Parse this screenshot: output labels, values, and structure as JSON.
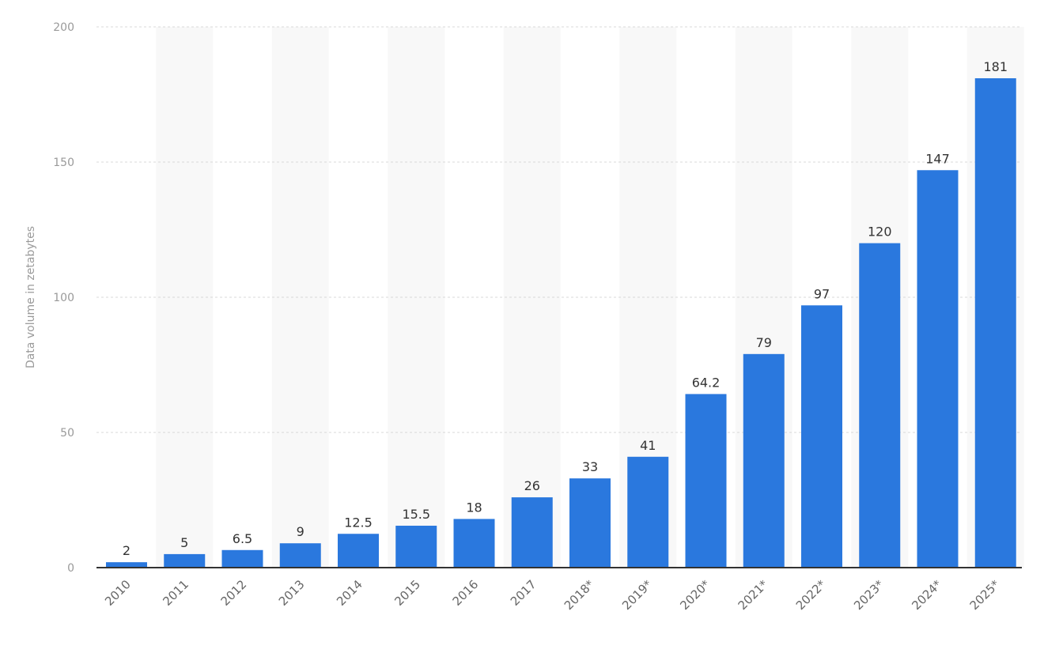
{
  "chart_data": {
    "type": "bar",
    "categories": [
      "2010",
      "2011",
      "2012",
      "2013",
      "2014",
      "2015",
      "2016",
      "2017",
      "2018*",
      "2019*",
      "2020*",
      "2021*",
      "2022*",
      "2023*",
      "2024*",
      "2025*"
    ],
    "values": [
      2,
      5,
      6.5,
      9,
      12.5,
      15.5,
      18,
      26,
      33,
      41,
      64.2,
      79,
      97,
      120,
      147,
      181
    ],
    "data_labels": [
      "2",
      "5",
      "6.5",
      "9",
      "12.5",
      "15.5",
      "18",
      "26",
      "33",
      "41",
      "64.2",
      "79",
      "97",
      "120",
      "147",
      "181"
    ],
    "title": "",
    "xlabel": "",
    "ylabel": "Data volume in zetabytes",
    "ylim": [
      0,
      200
    ],
    "yticks": [
      "0",
      "50",
      "100",
      "150",
      "200"
    ],
    "grid": true,
    "legend": "none",
    "colors": {
      "bar": "#2a78de",
      "gridline": "#d9d9d9",
      "band": "#f8f8f8",
      "axis": "#333333"
    }
  }
}
